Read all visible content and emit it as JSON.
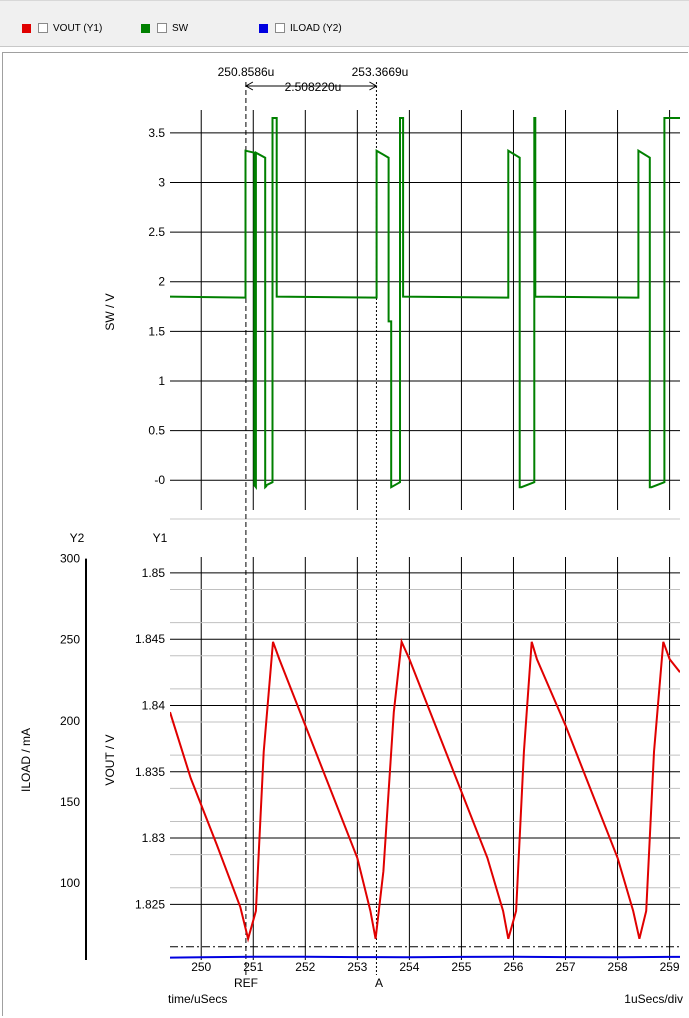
{
  "legend": [
    {
      "label": "VOUT (Y1)",
      "color": "#e00000"
    },
    {
      "label": "SW",
      "color": "#008000"
    },
    {
      "label": "ILOAD (Y2)",
      "color": "#0000e0"
    }
  ],
  "cursors": {
    "ref_label": "REF",
    "a_label": "A",
    "ref_x_text": "250.8586u",
    "a_x_text": "253.3669u",
    "delta_text": "2.508220u",
    "ref_x": 250.8586,
    "a_x": 253.3669,
    "level_vout": 1.8218
  },
  "axis_tags": {
    "y2": "Y2",
    "y1": "Y1"
  },
  "x_axis": {
    "label": "time/uSecs",
    "scale_text": "1uSecs/div",
    "range": [
      249.4,
      259.2
    ],
    "ticks": [
      "250",
      "251",
      "252",
      "253",
      "254",
      "255",
      "256",
      "257",
      "258",
      "259"
    ]
  },
  "chart_data": [
    {
      "type": "line",
      "ylabel": "SW / V",
      "ylim": [
        -0.3,
        3.65
      ],
      "yticks": [
        "3.5",
        "3",
        "2.5",
        "2",
        "1.5",
        "1",
        "0.5",
        "-0"
      ],
      "grid": true,
      "series": [
        {
          "name": "SW",
          "color": "#008000",
          "x": [
            249.4,
            250.85,
            250.85,
            251.02,
            251.02,
            251.05,
            251.05,
            251.23,
            251.23,
            251.25,
            251.25,
            251.37,
            251.37,
            251.45,
            251.45,
            253.37,
            253.37,
            253.6,
            253.6,
            253.65,
            253.65,
            253.82,
            253.82,
            253.88,
            253.88,
            255.9,
            255.9,
            256.12,
            256.12,
            256.15,
            256.15,
            256.4,
            256.4,
            256.42,
            256.42,
            258.4,
            258.4,
            258.62,
            258.62,
            258.65,
            258.65,
            258.9,
            258.9,
            259.2
          ],
          "y": [
            1.85,
            1.84,
            3.32,
            3.3,
            -0.05,
            -0.07,
            3.3,
            3.25,
            -0.07,
            -0.06,
            -0.05,
            -0.02,
            3.65,
            3.65,
            1.85,
            1.84,
            3.32,
            3.25,
            1.6,
            1.6,
            -0.07,
            -0.02,
            3.65,
            3.65,
            1.85,
            1.84,
            3.32,
            3.25,
            -0.07,
            -0.07,
            -0.07,
            -0.02,
            3.65,
            3.65,
            1.85,
            1.84,
            3.32,
            3.25,
            -0.07,
            -0.07,
            -0.07,
            -0.02,
            3.65,
            3.65
          ]
        }
      ]
    },
    {
      "type": "line",
      "ylabel": "VOUT / V",
      "y2label": "ILOAD / mA",
      "ylim": [
        1.8208,
        1.8512
      ],
      "y2lim": [
        52.5,
        301.0
      ],
      "yticks": [
        "1.85",
        "1.845",
        "1.84",
        "1.835",
        "1.83",
        "1.825"
      ],
      "y2ticks": [
        "300",
        "250",
        "200",
        "150",
        "100"
      ],
      "grid": true,
      "series": [
        {
          "name": "VOUT",
          "color": "#e00000",
          "x": [
            249.4,
            249.8,
            250.3,
            250.75,
            250.9,
            251.05,
            251.2,
            251.38,
            251.5,
            252.0,
            252.5,
            253.0,
            253.25,
            253.35,
            253.5,
            253.7,
            253.85,
            254.0,
            254.5,
            255.0,
            255.5,
            255.8,
            255.9,
            256.05,
            256.2,
            256.35,
            256.45,
            257.0,
            257.5,
            258.0,
            258.3,
            258.42,
            258.55,
            258.7,
            258.88,
            259.0,
            259.2
          ],
          "y": [
            1.8395,
            1.8345,
            1.8295,
            1.8248,
            1.8224,
            1.8245,
            1.8365,
            1.8448,
            1.8435,
            1.8385,
            1.8335,
            1.8285,
            1.8245,
            1.8224,
            1.8275,
            1.8395,
            1.8448,
            1.8435,
            1.8385,
            1.8335,
            1.8285,
            1.8245,
            1.8224,
            1.8245,
            1.8365,
            1.8448,
            1.8435,
            1.8385,
            1.8335,
            1.8285,
            1.8245,
            1.8224,
            1.8245,
            1.8365,
            1.8448,
            1.8435,
            1.8425
          ]
        },
        {
          "name": "ILOAD",
          "color": "#0000e0",
          "axis": "y2",
          "x": [
            249.4,
            250.0,
            251.0,
            252.0,
            253.0,
            254.0,
            255.0,
            256.0,
            257.0,
            258.0,
            259.0,
            259.2
          ],
          "y": [
            54.0,
            54.2,
            54.5,
            54.5,
            54.3,
            54.2,
            54.4,
            54.5,
            54.3,
            54.2,
            54.4,
            54.4
          ]
        }
      ]
    }
  ]
}
